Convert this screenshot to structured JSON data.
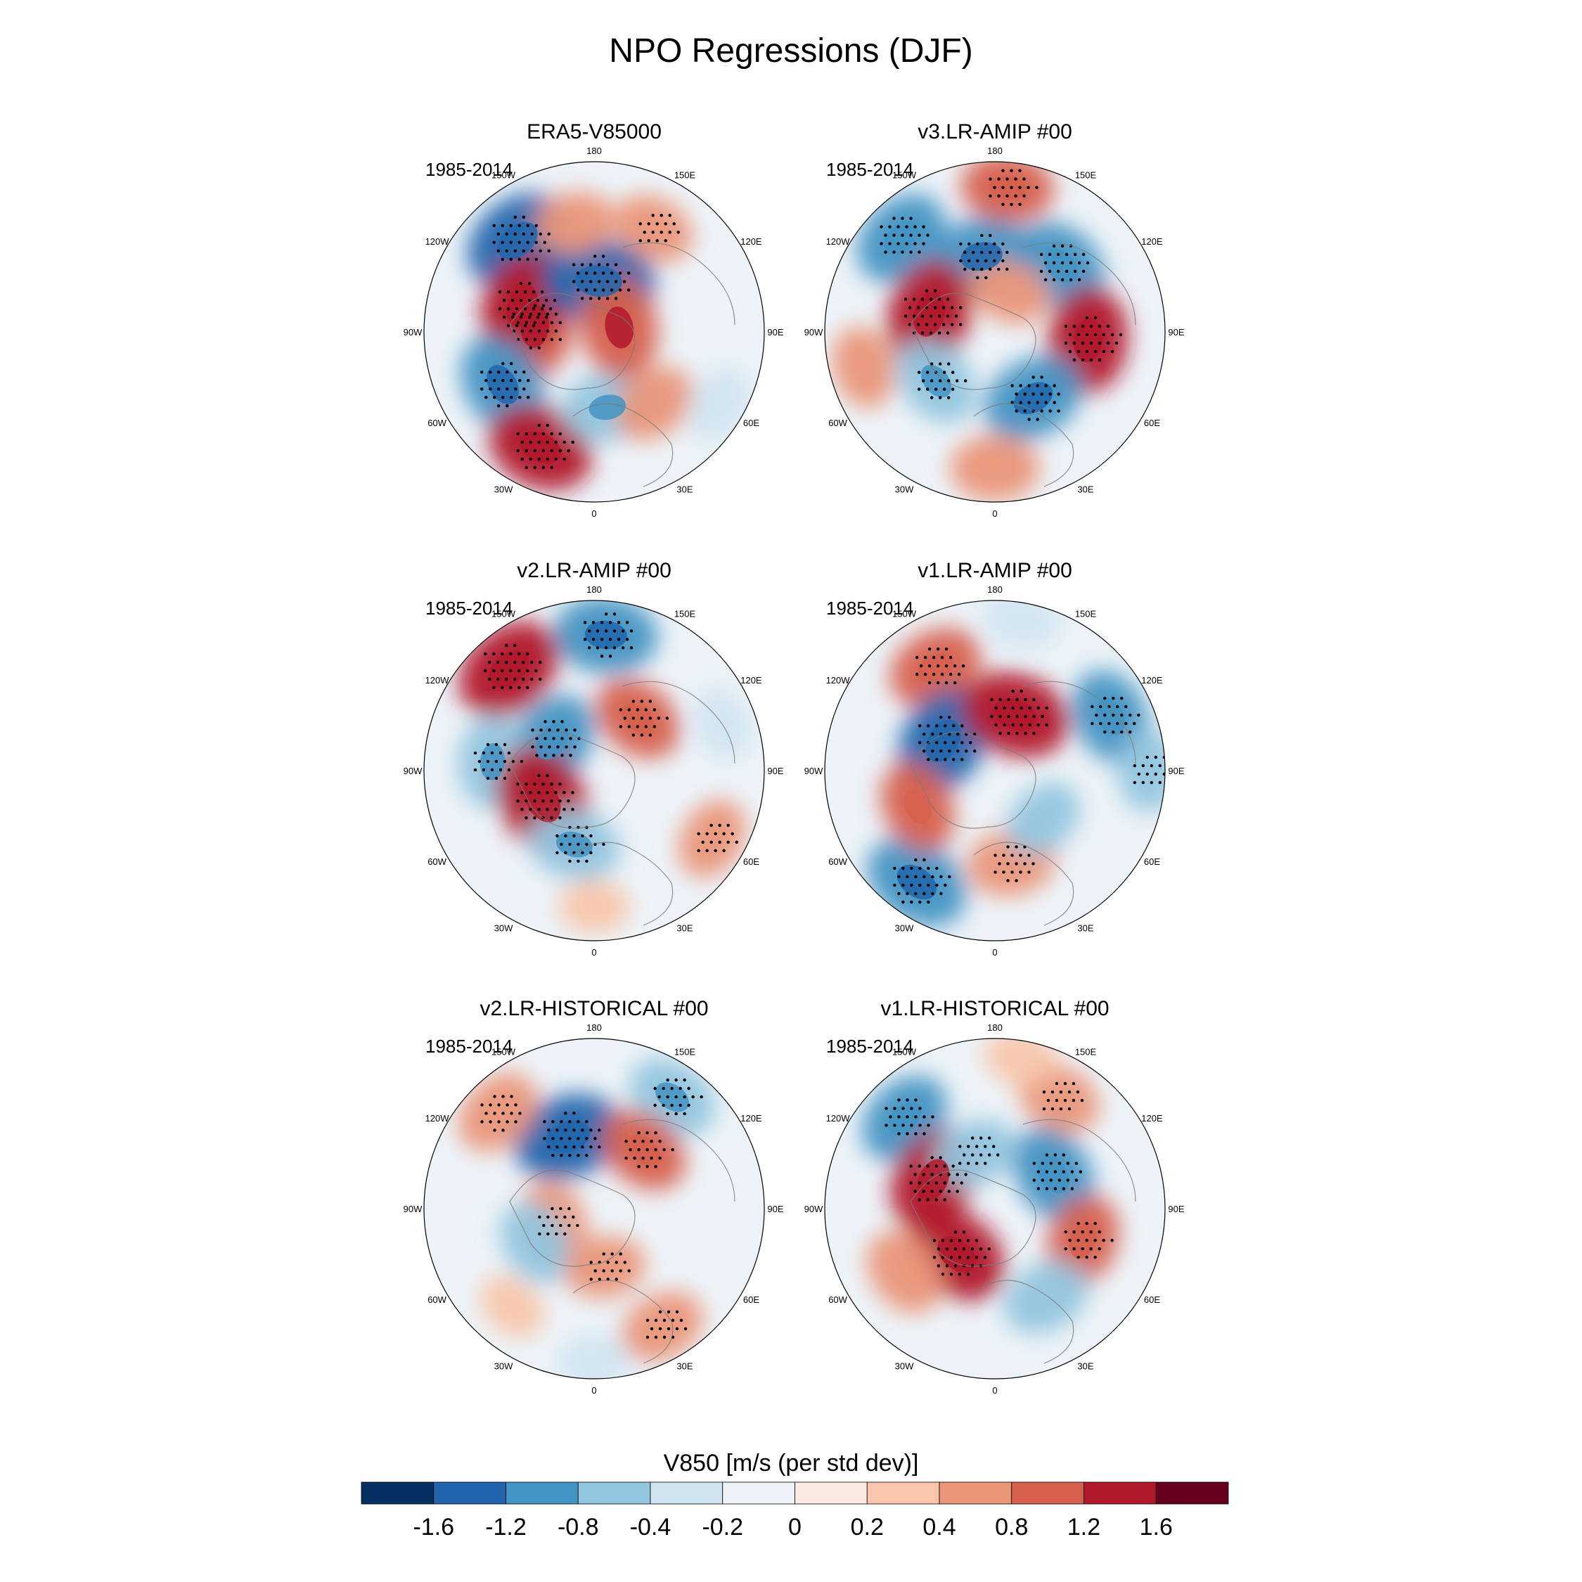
{
  "chart_data": {
    "type": "polar-contour-map",
    "title": "NPO Regressions (DJF)",
    "variable_label": "V850 [m/s (per std dev)]",
    "longitude_labels": [
      "180",
      "150E",
      "120E",
      "90E",
      "60E",
      "30E",
      "0",
      "30W",
      "60W",
      "90W",
      "120W",
      "150W"
    ],
    "panels": [
      {
        "title": "ERA5-V85000",
        "period": "1985-2014",
        "anomalies": [
          {
            "lon": -140,
            "colat": 0.7,
            "value": -1.3,
            "significant": true
          },
          {
            "lon": -95,
            "colat": 0.35,
            "value": 1.1,
            "significant": true
          },
          {
            "lon": -110,
            "colat": 0.45,
            "value": 1.2,
            "significant": true
          },
          {
            "lon": 175,
            "colat": 0.3,
            "value": -1.4,
            "significant": true
          },
          {
            "lon": -170,
            "colat": 0.65,
            "value": 0.5,
            "significant": false
          },
          {
            "lon": -60,
            "colat": 0.62,
            "value": -1.1,
            "significant": true
          },
          {
            "lon": -25,
            "colat": 0.75,
            "value": 1.2,
            "significant": true
          },
          {
            "lon": 10,
            "colat": 0.45,
            "value": -0.8,
            "significant": false
          },
          {
            "lon": 40,
            "colat": 0.55,
            "value": 0.6,
            "significant": false
          },
          {
            "lon": 100,
            "colat": 0.15,
            "value": 1.1,
            "significant": false
          },
          {
            "lon": 150,
            "colat": 0.7,
            "value": 0.5,
            "significant": true
          },
          {
            "lon": 60,
            "colat": 0.85,
            "value": -0.4,
            "significant": false
          }
        ]
      },
      {
        "title": "v3.LR-AMIP  #00",
        "period": "1985-2014",
        "anomalies": [
          {
            "lon": -135,
            "colat": 0.78,
            "value": -1.0,
            "significant": true
          },
          {
            "lon": -170,
            "colat": 0.45,
            "value": -1.1,
            "significant": true
          },
          {
            "lon": -105,
            "colat": 0.4,
            "value": 1.3,
            "significant": true
          },
          {
            "lon": 175,
            "colat": 0.85,
            "value": 0.8,
            "significant": true
          },
          {
            "lon": 135,
            "colat": 0.55,
            "value": -1.0,
            "significant": true
          },
          {
            "lon": 85,
            "colat": 0.55,
            "value": 1.2,
            "significant": true
          },
          {
            "lon": 30,
            "colat": 0.45,
            "value": -1.1,
            "significant": true
          },
          {
            "lon": -50,
            "colat": 0.45,
            "value": -0.8,
            "significant": true
          },
          {
            "lon": 0,
            "colat": 0.8,
            "value": 0.7,
            "significant": false
          },
          {
            "lon": -75,
            "colat": 0.8,
            "value": 0.5,
            "significant": false
          },
          {
            "lon": 160,
            "colat": 0.25,
            "value": 0.5,
            "significant": false
          }
        ]
      },
      {
        "title": "v2.LR-AMIP  #00",
        "period": "1985-2014",
        "anomalies": [
          {
            "lon": -140,
            "colat": 0.78,
            "value": 1.3,
            "significant": true
          },
          {
            "lon": 175,
            "colat": 0.8,
            "value": -1.1,
            "significant": true
          },
          {
            "lon": -125,
            "colat": 0.3,
            "value": -1.0,
            "significant": true
          },
          {
            "lon": -95,
            "colat": 0.6,
            "value": -0.8,
            "significant": true
          },
          {
            "lon": -60,
            "colat": 0.35,
            "value": 1.4,
            "significant": true
          },
          {
            "lon": -15,
            "colat": 0.45,
            "value": -0.8,
            "significant": true
          },
          {
            "lon": 140,
            "colat": 0.4,
            "value": 0.8,
            "significant": true
          },
          {
            "lon": 110,
            "colat": 0.8,
            "value": -0.3,
            "significant": false
          },
          {
            "lon": 60,
            "colat": 0.8,
            "value": 0.5,
            "significant": true
          },
          {
            "lon": 0,
            "colat": 0.8,
            "value": 0.2,
            "significant": false
          }
        ]
      },
      {
        "title": "v1.LR-AMIP  #00",
        "period": "1985-2014",
        "anomalies": [
          {
            "lon": -150,
            "colat": 0.7,
            "value": 0.9,
            "significant": true
          },
          {
            "lon": -120,
            "colat": 0.35,
            "value": -1.3,
            "significant": true
          },
          {
            "lon": 160,
            "colat": 0.35,
            "value": 1.3,
            "significant": true
          },
          {
            "lon": 115,
            "colat": 0.75,
            "value": -0.9,
            "significant": true
          },
          {
            "lon": -35,
            "colat": 0.8,
            "value": -1.2,
            "significant": true
          },
          {
            "lon": -65,
            "colat": 0.5,
            "value": 0.8,
            "significant": false
          },
          {
            "lon": 10,
            "colat": 0.55,
            "value": 0.7,
            "significant": true
          },
          {
            "lon": 45,
            "colat": 0.4,
            "value": -0.5,
            "significant": false
          },
          {
            "lon": 170,
            "colat": 0.9,
            "value": -0.4,
            "significant": false
          },
          {
            "lon": 90,
            "colat": 0.9,
            "value": -0.5,
            "significant": true
          }
        ]
      },
      {
        "title": "v2.LR-HISTORICAL  #00",
        "period": "1985-2014",
        "anomalies": [
          {
            "lon": -160,
            "colat": 0.45,
            "value": -1.3,
            "significant": true
          },
          {
            "lon": -135,
            "colat": 0.8,
            "value": 0.7,
            "significant": true
          },
          {
            "lon": 145,
            "colat": 0.8,
            "value": -0.8,
            "significant": true
          },
          {
            "lon": 140,
            "colat": 0.45,
            "value": 0.8,
            "significant": true
          },
          {
            "lon": -70,
            "colat": 0.25,
            "value": 0.6,
            "significant": true
          },
          {
            "lon": -60,
            "colat": 0.4,
            "value": -0.6,
            "significant": false
          },
          {
            "lon": 10,
            "colat": 0.35,
            "value": 0.5,
            "significant": true
          },
          {
            "lon": 30,
            "colat": 0.8,
            "value": 0.6,
            "significant": true
          },
          {
            "lon": 0,
            "colat": 0.9,
            "value": -0.3,
            "significant": false
          },
          {
            "lon": -40,
            "colat": 0.75,
            "value": 0.2,
            "significant": false
          }
        ]
      },
      {
        "title": "v1.LR-HISTORICAL  #00",
        "period": "1985-2014",
        "anomalies": [
          {
            "lon": -135,
            "colat": 0.75,
            "value": -0.9,
            "significant": true
          },
          {
            "lon": -115,
            "colat": 0.4,
            "value": 1.2,
            "significant": true
          },
          {
            "lon": 150,
            "colat": 0.75,
            "value": 0.6,
            "significant": true
          },
          {
            "lon": 120,
            "colat": 0.4,
            "value": -1.0,
            "significant": true
          },
          {
            "lon": -40,
            "colat": 0.35,
            "value": 1.2,
            "significant": true
          },
          {
            "lon": -55,
            "colat": 0.65,
            "value": 0.7,
            "significant": false
          },
          {
            "lon": 70,
            "colat": 0.55,
            "value": 0.8,
            "significant": true
          },
          {
            "lon": 30,
            "colat": 0.6,
            "value": -0.7,
            "significant": false
          },
          {
            "lon": -160,
            "colat": 0.35,
            "value": -0.6,
            "significant": true
          },
          {
            "lon": 170,
            "colat": 0.9,
            "value": 0.3,
            "significant": false
          }
        ]
      }
    ],
    "colorbar": {
      "ticks": [
        "-1.6",
        "-1.2",
        "-0.8",
        "-0.4",
        "-0.2",
        "0",
        "0.2",
        "0.4",
        "0.8",
        "1.2",
        "1.6"
      ],
      "levels": [
        -1.6,
        -1.2,
        -0.8,
        -0.4,
        -0.2,
        0,
        0.2,
        0.4,
        0.8,
        1.2,
        1.6
      ],
      "colors": [
        "#053061",
        "#2166ac",
        "#4393c3",
        "#92c5de",
        "#d1e5f0",
        "#edf3f8",
        "#fbeae3",
        "#f8c6ab",
        "#ea9679",
        "#d6604d",
        "#b2182b",
        "#67001f"
      ]
    }
  }
}
